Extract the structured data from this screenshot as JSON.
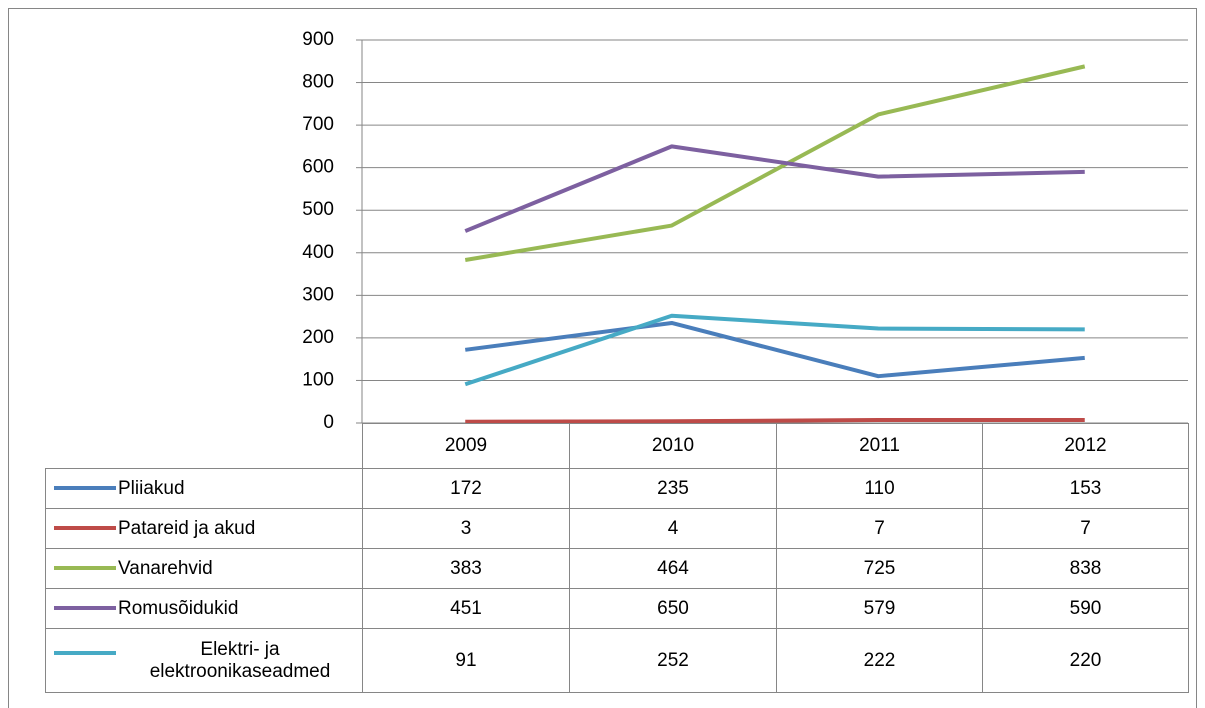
{
  "chart_data": {
    "type": "line",
    "categories": [
      "2009",
      "2010",
      "2011",
      "2012"
    ],
    "series": [
      {
        "name": "Pliiakud",
        "color": "#4a7ebb",
        "values": [
          172,
          235,
          110,
          153
        ]
      },
      {
        "name": "Patareid ja akud",
        "color": "#be4b48",
        "values": [
          3,
          4,
          7,
          7
        ]
      },
      {
        "name": "Vanarehvid",
        "color": "#98b954",
        "values": [
          383,
          464,
          725,
          838
        ]
      },
      {
        "name": "Romusõidukid",
        "color": "#7d60a0",
        "values": [
          451,
          650,
          579,
          590
        ]
      },
      {
        "name": "Elektri- ja elektroonikaseadmed",
        "color": "#46aac5",
        "values": [
          91,
          252,
          222,
          220
        ]
      }
    ],
    "ylim": [
      0,
      900
    ],
    "yticks": [
      0,
      100,
      200,
      300,
      400,
      500,
      600,
      700,
      800,
      900
    ],
    "grid": true
  }
}
